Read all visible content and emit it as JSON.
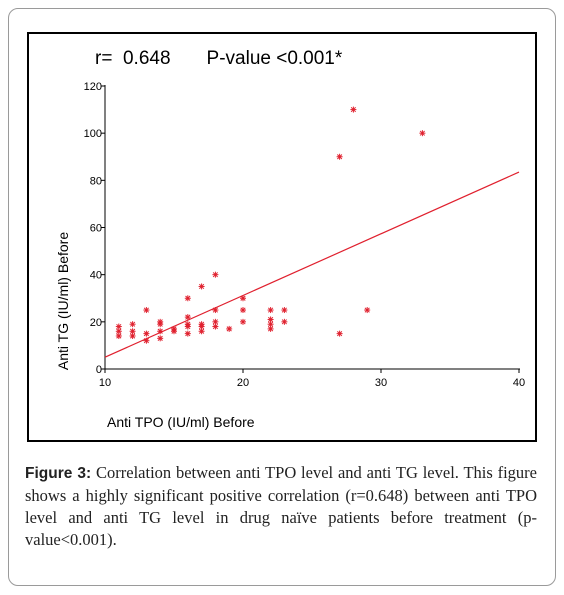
{
  "stats": {
    "r_text": "r=  0.648",
    "p_text": "P-value <0.001*"
  },
  "caption": {
    "label": "Figure 3:",
    "text": " Correlation between anti TPO level and anti TG level. This figure shows a highly significant positive correlation (r=0.648) between anti TPO level and anti TG level in drug naïve patients before treatment (p-value<0.001)."
  },
  "colors": {
    "points": "#e0202e",
    "fit_line": "#e0202e",
    "axes": "#000000"
  },
  "chart_data": {
    "type": "scatter",
    "xlabel": "Anti TPO (IU/ml) Before",
    "ylabel": "Anti TG (IU/ml) Before",
    "xlim": [
      10,
      40
    ],
    "ylim": [
      0,
      120
    ],
    "x_ticks": [
      10,
      20,
      30,
      40
    ],
    "y_ticks": [
      0,
      20,
      40,
      60,
      80,
      100,
      120
    ],
    "grid": false,
    "marker": "asterisk",
    "points": [
      [
        11,
        14
      ],
      [
        11,
        16
      ],
      [
        11,
        18
      ],
      [
        12,
        14
      ],
      [
        12,
        16
      ],
      [
        12,
        19
      ],
      [
        13,
        12
      ],
      [
        13,
        15
      ],
      [
        13,
        25
      ],
      [
        14,
        13
      ],
      [
        14,
        16
      ],
      [
        14,
        19
      ],
      [
        14,
        20
      ],
      [
        15,
        16
      ],
      [
        15,
        17
      ],
      [
        16,
        15
      ],
      [
        16,
        18
      ],
      [
        16,
        19
      ],
      [
        16,
        22
      ],
      [
        16,
        30
      ],
      [
        17,
        16
      ],
      [
        17,
        18
      ],
      [
        17,
        19
      ],
      [
        17,
        35
      ],
      [
        18,
        18
      ],
      [
        18,
        20
      ],
      [
        18,
        25
      ],
      [
        18,
        40
      ],
      [
        19,
        17
      ],
      [
        20,
        20
      ],
      [
        20,
        25
      ],
      [
        20,
        30
      ],
      [
        22,
        17
      ],
      [
        22,
        19
      ],
      [
        22,
        21
      ],
      [
        22,
        25
      ],
      [
        23,
        20
      ],
      [
        23,
        25
      ],
      [
        27,
        15
      ],
      [
        27,
        90
      ],
      [
        28,
        110
      ],
      [
        29,
        25
      ],
      [
        33,
        100
      ]
    ],
    "fit_line": {
      "x": [
        10,
        40
      ],
      "y": [
        5,
        83.5
      ]
    }
  }
}
